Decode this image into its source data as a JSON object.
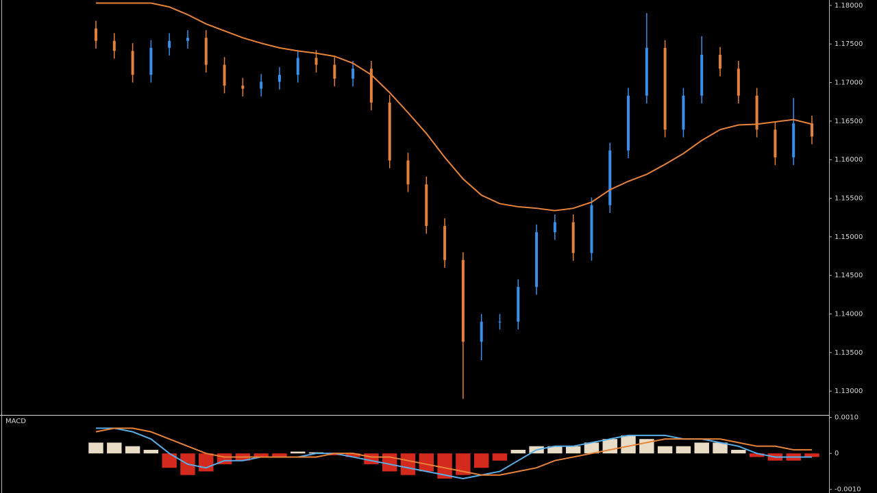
{
  "chart_data": [
    {
      "type": "candlestick",
      "colors": {
        "up": "#3a8fe8",
        "down": "#e2803c"
      },
      "open": [
        1.177,
        1.1754,
        1.1741,
        1.171,
        1.1745,
        1.1754,
        1.1758,
        1.1723,
        1.1696,
        1.1692,
        1.1701,
        1.171,
        1.1732,
        1.1723,
        1.1705,
        1.1718,
        1.1674,
        1.1599,
        1.1568,
        1.1514,
        1.147,
        1.1364,
        1.139,
        1.139,
        1.1435,
        1.1506,
        1.1519,
        1.1479,
        1.1541,
        1.1612,
        1.1683,
        1.1745,
        1.1639,
        1.1683,
        1.1736,
        1.1718,
        1.1683,
        1.1639,
        1.1603,
        1.1647
      ],
      "high": [
        1.178,
        1.1764,
        1.1751,
        1.1755,
        1.1764,
        1.1768,
        1.1768,
        1.1733,
        1.1706,
        1.1711,
        1.172,
        1.1742,
        1.1742,
        1.1733,
        1.1728,
        1.1728,
        1.1684,
        1.1609,
        1.1578,
        1.1524,
        1.148,
        1.14,
        1.14,
        1.1445,
        1.1516,
        1.1529,
        1.1529,
        1.1551,
        1.1622,
        1.1693,
        1.179,
        1.1755,
        1.1693,
        1.176,
        1.1746,
        1.1728,
        1.1693,
        1.1649,
        1.168,
        1.1657
      ],
      "low": [
        1.1744,
        1.1731,
        1.17,
        1.17,
        1.1735,
        1.1744,
        1.1713,
        1.1686,
        1.1682,
        1.1682,
        1.1691,
        1.17,
        1.1713,
        1.1695,
        1.1695,
        1.1664,
        1.1589,
        1.1558,
        1.1504,
        1.146,
        1.129,
        1.134,
        1.138,
        1.138,
        1.1425,
        1.1496,
        1.1469,
        1.1469,
        1.1531,
        1.1602,
        1.1673,
        1.1629,
        1.1629,
        1.1673,
        1.1708,
        1.1673,
        1.1629,
        1.1593,
        1.1593,
        1.162
      ],
      "close": [
        1.1754,
        1.1741,
        1.171,
        1.1745,
        1.1754,
        1.1758,
        1.1723,
        1.1696,
        1.1692,
        1.1701,
        1.171,
        1.1732,
        1.1723,
        1.1705,
        1.1718,
        1.1674,
        1.1599,
        1.1568,
        1.1514,
        1.147,
        1.1364,
        1.139,
        1.139,
        1.1435,
        1.1506,
        1.1519,
        1.1479,
        1.1541,
        1.1612,
        1.1683,
        1.1745,
        1.1639,
        1.1683,
        1.1736,
        1.1718,
        1.1683,
        1.1639,
        1.1603,
        1.1647,
        1.163
      ],
      "ma": {
        "color": "#e8843a",
        "values": [
          1.1803,
          1.1803,
          1.1803,
          1.1803,
          1.1798,
          1.1788,
          1.1776,
          1.1767,
          1.1758,
          1.1751,
          1.1745,
          1.1741,
          1.1738,
          1.1734,
          1.1725,
          1.171,
          1.1687,
          1.1661,
          1.1634,
          1.1603,
          1.1575,
          1.1554,
          1.1543,
          1.1539,
          1.1537,
          1.1534,
          1.1537,
          1.1545,
          1.1561,
          1.1572,
          1.1581,
          1.1594,
          1.1608,
          1.1625,
          1.1639,
          1.1645,
          1.1646,
          1.1649,
          1.1652,
          1.1646
        ]
      },
      "ylim": [
        1.127,
        1.1807
      ],
      "yticks": [
        {
          "value": 1.18,
          "label": "1.18000"
        },
        {
          "value": 1.175,
          "label": "1.17500"
        },
        {
          "value": 1.17,
          "label": "1.17000"
        },
        {
          "value": 1.165,
          "label": "1.16500"
        },
        {
          "value": 1.16,
          "label": "1.16000"
        },
        {
          "value": 1.155,
          "label": "1.15500"
        },
        {
          "value": 1.15,
          "label": "1.15000"
        },
        {
          "value": 1.145,
          "label": "1.14500"
        },
        {
          "value": 1.14,
          "label": "1.14000"
        },
        {
          "value": 1.135,
          "label": "1.13500"
        },
        {
          "value": 1.13,
          "label": "1.13000"
        }
      ]
    },
    {
      "type": "macd",
      "title": "MACD",
      "histogram": {
        "up_color": "#e9dcc6",
        "down_color": "#d42a1e",
        "values": [
          0.0003,
          0.0003,
          0.0002,
          0.0001,
          -0.0004,
          -0.0006,
          -0.0005,
          -0.0003,
          -0.0002,
          -0.0001,
          -0.0001,
          5e-05,
          3e-05,
          -5e-05,
          -0.0001,
          -0.0003,
          -0.0005,
          -0.0006,
          -0.0005,
          -0.0007,
          -0.0006,
          -0.0004,
          -0.0002,
          0.0001,
          0.0002,
          0.0002,
          0.0002,
          0.0003,
          0.0004,
          0.0005,
          0.0004,
          0.0002,
          0.0002,
          0.0003,
          0.0003,
          0.0001,
          -0.0001,
          -0.0002,
          -0.0002,
          -0.0001
        ]
      },
      "macd": {
        "color": "#5aaee8",
        "values": [
          0.0007,
          0.0007,
          0.0006,
          0.0004,
          0.0,
          -0.0003,
          -0.0004,
          -0.0002,
          -0.0002,
          -0.0001,
          -0.0001,
          -0.0001,
          0.0,
          0.0,
          -0.0001,
          -0.0002,
          -0.0003,
          -0.0004,
          -0.0005,
          -0.0006,
          -0.0007,
          -0.0006,
          -0.0005,
          -0.0002,
          0.0001,
          0.0002,
          0.0002,
          0.0003,
          0.0004,
          0.0005,
          0.0005,
          0.0005,
          0.0004,
          0.0004,
          0.0003,
          0.0002,
          0.0,
          -0.0001,
          -0.0001,
          -0.0001
        ]
      },
      "signal": {
        "color": "#e8843a",
        "values": [
          0.0006,
          0.0007,
          0.0007,
          0.0006,
          0.0004,
          0.0002,
          0.0,
          -0.0001,
          -0.0001,
          -0.0001,
          -0.0001,
          -0.0001,
          -0.0001,
          0.0,
          0.0,
          -0.0001,
          -0.0001,
          -0.0002,
          -0.0003,
          -0.0004,
          -0.0005,
          -0.0006,
          -0.0006,
          -0.0005,
          -0.0004,
          -0.0002,
          -0.0001,
          0.0,
          0.0001,
          0.0002,
          0.0003,
          0.0004,
          0.0004,
          0.0004,
          0.0004,
          0.0003,
          0.0002,
          0.0002,
          0.0001,
          0.0001
        ]
      },
      "ylim": [
        -0.0011,
        0.00105
      ],
      "yticks": [
        {
          "value": 0.001,
          "label": "0.0010"
        },
        0,
        {
          "value": -0.001,
          "label": "-0.0010"
        }
      ]
    }
  ]
}
